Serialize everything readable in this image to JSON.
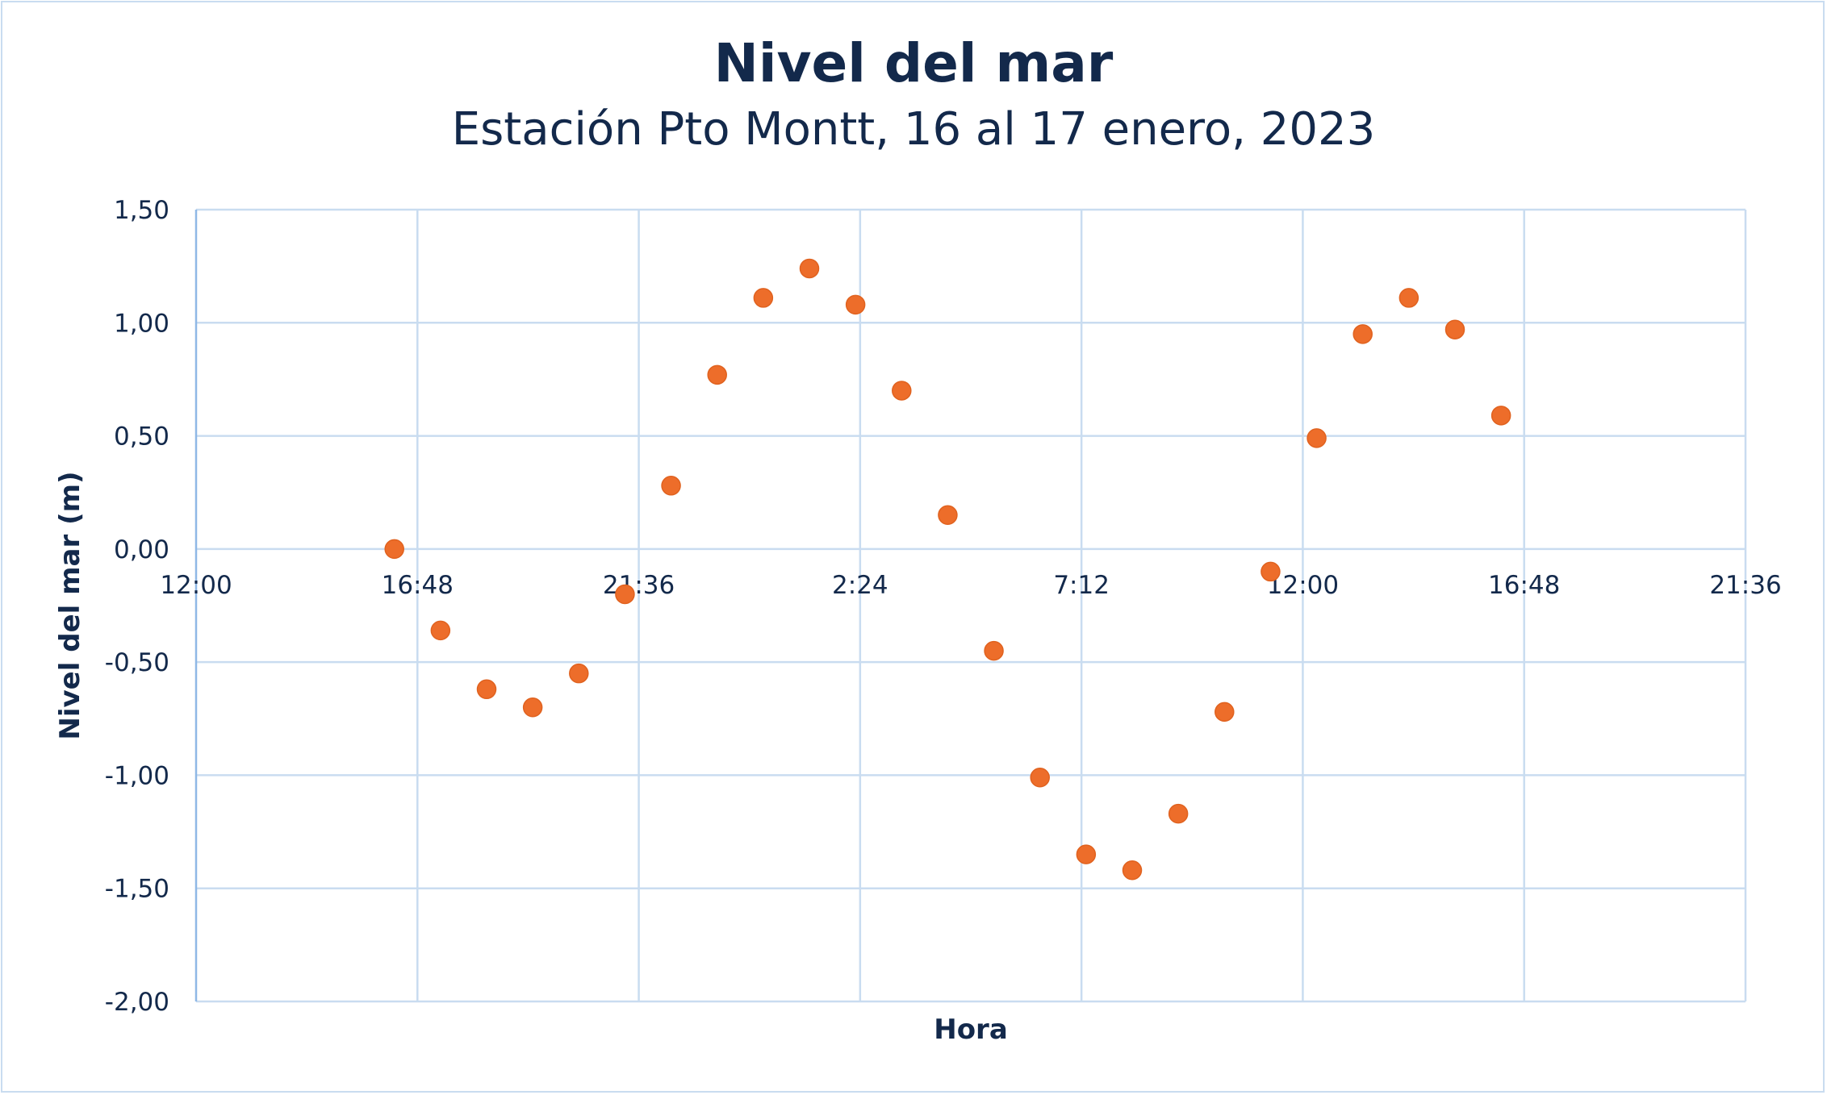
{
  "chart_data": {
    "type": "scatter",
    "title": "Nivel del mar",
    "subtitle": "Estación Pto Montt, 16 al 17 enero, 2023",
    "xlabel": "Hora",
    "ylabel": "Nivel del mar (m)",
    "x_unit": "hours since 12:00 of Jan 16",
    "xlim": [
      0,
      33.6
    ],
    "ylim": [
      -2.0,
      1.5
    ],
    "grid": true,
    "x_ticks": [
      0,
      4.8,
      9.6,
      14.4,
      19.2,
      24.0,
      28.8,
      33.6
    ],
    "x_tick_labels": [
      "12:00",
      "16:48",
      "21:36",
      "2:24",
      "7:12",
      "12:00",
      "16:48",
      "21:36"
    ],
    "y_ticks": [
      1.5,
      1.0,
      0.5,
      0.0,
      -0.5,
      -1.0,
      -1.5,
      -2.0
    ],
    "y_tick_labels": [
      "1,50",
      "1,00",
      "0,50",
      "0,00",
      "-0,50",
      "-1,00",
      "-1,50",
      "-2,00"
    ],
    "marker_color": "#ed6d2a",
    "series": [
      {
        "name": "Nivel del mar",
        "x": [
          4.3,
          5.3,
          6.3,
          7.3,
          8.3,
          9.3,
          10.3,
          11.3,
          12.3,
          13.3,
          14.3,
          15.3,
          16.3,
          17.3,
          18.3,
          19.3,
          20.3,
          21.3,
          22.3,
          23.3,
          24.3,
          25.3,
          26.3,
          27.3,
          28.3
        ],
        "y": [
          0.0,
          -0.36,
          -0.62,
          -0.7,
          -0.55,
          -0.2,
          0.28,
          0.77,
          1.11,
          1.24,
          1.08,
          0.7,
          0.15,
          -0.45,
          -1.01,
          -1.35,
          -1.42,
          -1.17,
          -0.72,
          -0.1,
          0.49,
          0.95,
          1.11,
          0.97,
          0.59
        ]
      }
    ]
  }
}
